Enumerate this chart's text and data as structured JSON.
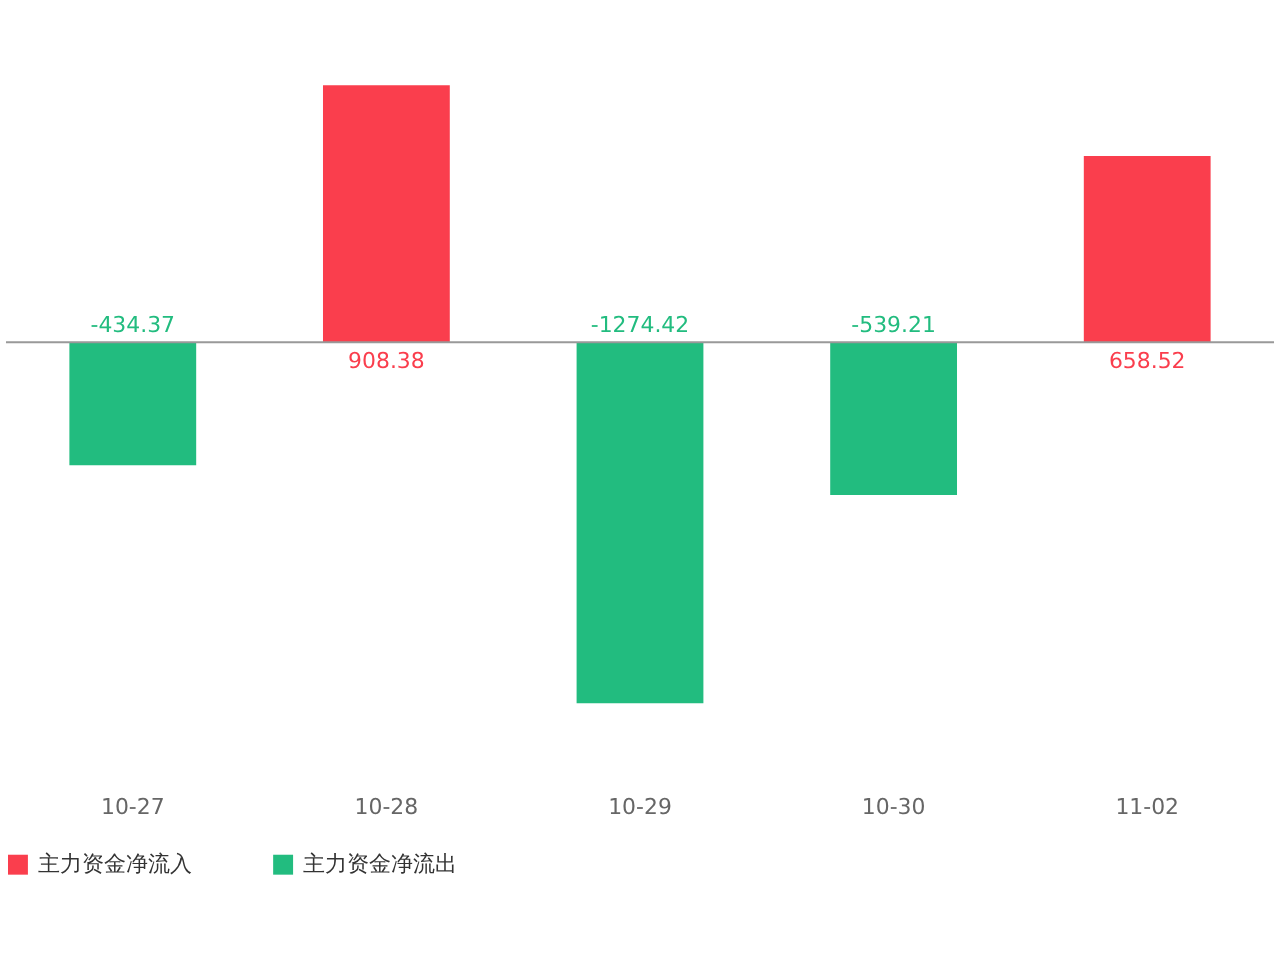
{
  "chart_data": {
    "type": "bar",
    "categories": [
      "10-27",
      "10-28",
      "10-29",
      "10-30",
      "11-02"
    ],
    "series": [
      {
        "name": "主力资金净流入",
        "color": "#fa3e4d",
        "values": [
          null,
          908.38,
          null,
          null,
          658.52
        ]
      },
      {
        "name": "主力资金净流出",
        "color": "#22bc7f",
        "values": [
          -434.37,
          null,
          -1274.42,
          -539.21,
          null
        ]
      }
    ],
    "data_labels": true,
    "legend": "bottom",
    "grid": false
  }
}
